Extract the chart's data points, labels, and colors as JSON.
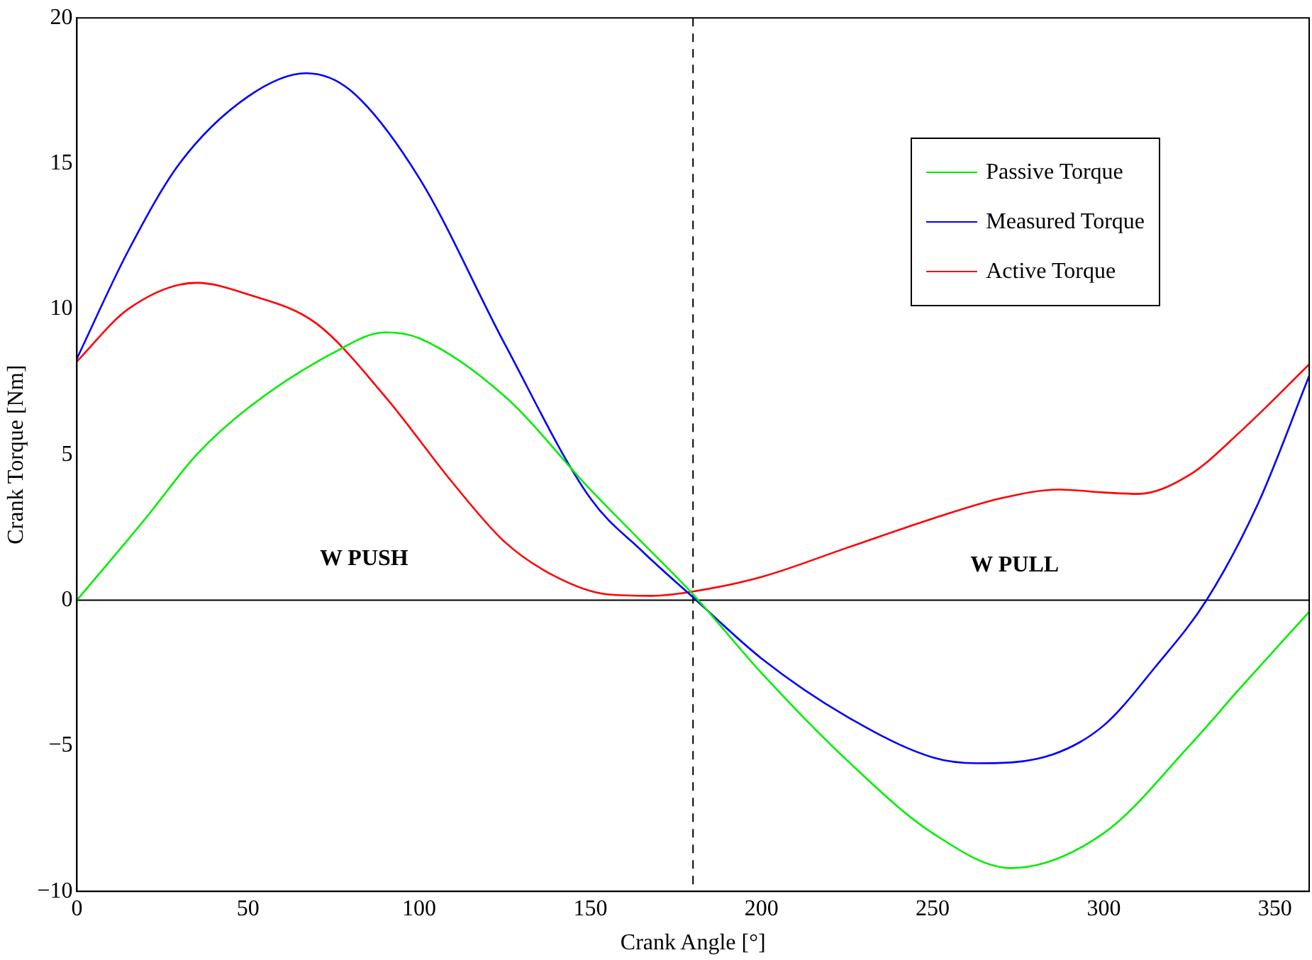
{
  "chart_data": {
    "type": "line",
    "xlabel": "Crank Angle [°]",
    "ylabel": "Crank Torque [Nm]",
    "xlim": [
      0,
      360
    ],
    "ylim": [
      -10,
      20
    ],
    "xticks": [
      0,
      50,
      100,
      150,
      200,
      250,
      300,
      350
    ],
    "yticks": [
      {
        "value": -10,
        "label": "−10"
      },
      {
        "value": -5,
        "label": "−5"
      },
      0,
      5,
      10,
      15,
      20
    ],
    "grid": false,
    "legend": "top right",
    "marker": "none",
    "line_style": "solid",
    "series": [
      {
        "name": "Passive Torque",
        "color": "#00ee00",
        "x": [
          0,
          20,
          35,
          50,
          75,
          90,
          100,
          125,
          150,
          165,
          180,
          200,
          225,
          250,
          273,
          300,
          325,
          340,
          360
        ],
        "values": [
          0,
          2.8,
          5,
          6.6,
          8.5,
          9.2,
          9,
          7,
          3.8,
          2,
          0.2,
          -2.5,
          -5.5,
          -8,
          -9.2,
          -8,
          -5,
          -3,
          -0.4
        ]
      },
      {
        "name": "Measured Torque",
        "color": "#0000ff",
        "x": [
          0,
          15,
          30,
          50,
          67,
          80,
          100,
          125,
          150,
          165,
          180,
          200,
          225,
          250,
          263,
          285,
          300,
          315,
          330,
          345,
          360
        ],
        "values": [
          8.3,
          12,
          15,
          17.3,
          18.1,
          17.5,
          14.5,
          8.8,
          3.5,
          1.7,
          0.1,
          -2,
          -4,
          -5.4,
          -5.6,
          -5.3,
          -4.3,
          -2.3,
          0,
          3.3,
          7.7
        ]
      },
      {
        "name": "Active Torque",
        "color": "#ff0000",
        "x": [
          0,
          15,
          35,
          50,
          70,
          90,
          110,
          125,
          140,
          155,
          168,
          180,
          200,
          225,
          250,
          270,
          287,
          300,
          310,
          325,
          340,
          360
        ],
        "values": [
          8.2,
          10,
          10.9,
          10.5,
          9.5,
          7,
          4,
          2,
          0.8,
          0.2,
          0.15,
          0.3,
          0.8,
          1.8,
          2.8,
          3.5,
          3.8,
          3.7,
          3.65,
          4.3,
          5.8,
          8.1
        ]
      }
    ],
    "ref_lines": [
      {
        "axis": "x",
        "value": 180,
        "color": "#000000",
        "line_style": "dashed"
      },
      {
        "axis": "y",
        "value": 0,
        "color": "#000000",
        "line_style": "solid"
      }
    ],
    "annotations": [
      "W PUSH",
      "W PULL"
    ]
  }
}
